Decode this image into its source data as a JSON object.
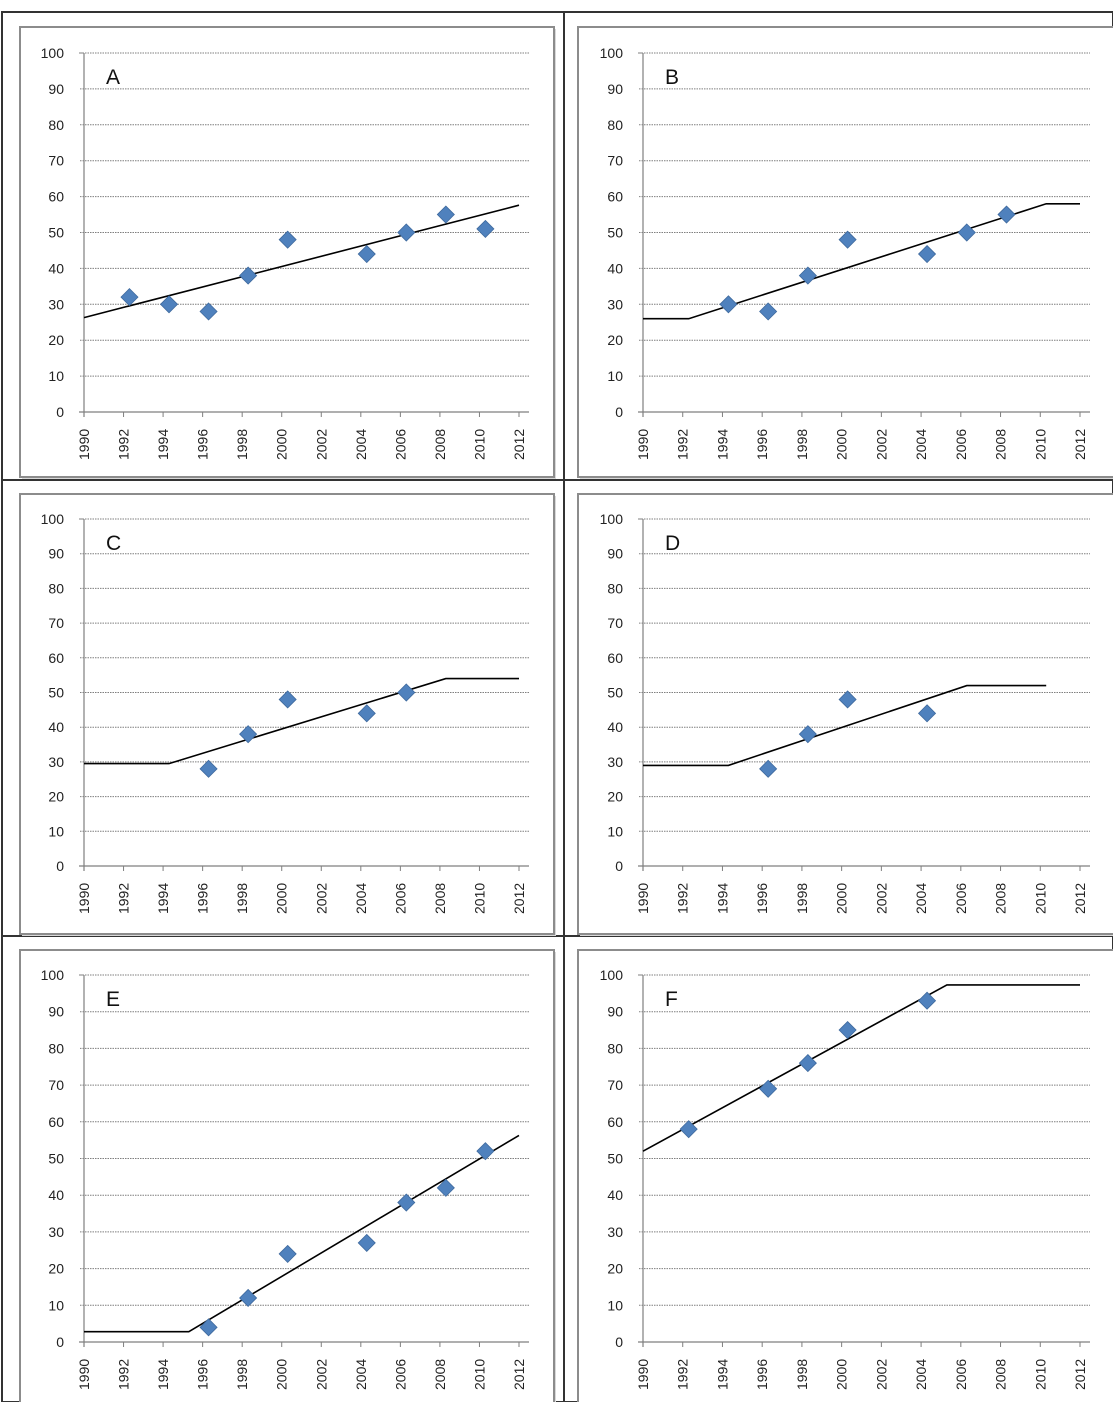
{
  "figure": {
    "xticks": [
      "1990",
      "1992",
      "1994",
      "1996",
      "1998",
      "2000",
      "2002",
      "2004",
      "2006",
      "2008",
      "2010",
      "2012"
    ],
    "yticks": [
      "0",
      "10",
      "20",
      "30",
      "40",
      "50",
      "60",
      "70",
      "80",
      "90",
      "100"
    ],
    "marker_color": "#4F81BD",
    "line_color": "#000000"
  },
  "chart_data": [
    {
      "type": "scatter",
      "panel": "A",
      "xlim": [
        1990,
        2012
      ],
      "ylim": [
        0,
        100
      ],
      "grid": true,
      "points": [
        [
          1992.3,
          32
        ],
        [
          1994.3,
          30
        ],
        [
          1996.3,
          28
        ],
        [
          1998.3,
          38
        ],
        [
          2000.3,
          48
        ],
        [
          2004.3,
          44
        ],
        [
          2006.3,
          50
        ],
        [
          2008.3,
          55
        ],
        [
          2010.3,
          51
        ]
      ],
      "fit_line": [
        [
          1990,
          26.3
        ],
        [
          2012,
          57.6
        ]
      ]
    },
    {
      "type": "scatter",
      "panel": "B",
      "xlim": [
        1990,
        2012
      ],
      "ylim": [
        0,
        100
      ],
      "grid": true,
      "points": [
        [
          1994.3,
          30
        ],
        [
          1996.3,
          28
        ],
        [
          1998.3,
          38
        ],
        [
          2000.3,
          48
        ],
        [
          2004.3,
          44
        ],
        [
          2006.3,
          50
        ],
        [
          2008.3,
          55
        ]
      ],
      "fit_line": [
        [
          1990,
          26
        ],
        [
          1992.3,
          26
        ],
        [
          2010.3,
          58
        ],
        [
          2012,
          58
        ]
      ]
    },
    {
      "type": "scatter",
      "panel": "C",
      "xlim": [
        1990,
        2012
      ],
      "ylim": [
        0,
        100
      ],
      "grid": true,
      "points": [
        [
          1996.3,
          28
        ],
        [
          1998.3,
          38
        ],
        [
          2000.3,
          48
        ],
        [
          2004.3,
          44
        ],
        [
          2006.3,
          50
        ]
      ],
      "fit_line": [
        [
          1990,
          29.5
        ],
        [
          1994.3,
          29.5
        ],
        [
          2008.3,
          54
        ],
        [
          2012,
          54
        ]
      ]
    },
    {
      "type": "scatter",
      "panel": "D",
      "xlim": [
        1990,
        2012
      ],
      "ylim": [
        0,
        100
      ],
      "grid": true,
      "points": [
        [
          1996.3,
          28
        ],
        [
          1998.3,
          38
        ],
        [
          2000.3,
          48
        ],
        [
          2004.3,
          44
        ]
      ],
      "fit_line": [
        [
          1990,
          29
        ],
        [
          1994.3,
          29
        ],
        [
          2006.3,
          52
        ],
        [
          2010.3,
          52
        ]
      ]
    },
    {
      "type": "scatter",
      "panel": "E",
      "xlim": [
        1990,
        2012
      ],
      "ylim": [
        0,
        100
      ],
      "grid": true,
      "points": [
        [
          1996.3,
          4
        ],
        [
          1998.3,
          12
        ],
        [
          2000.3,
          24
        ],
        [
          2004.3,
          27
        ],
        [
          2006.3,
          38
        ],
        [
          2008.3,
          42
        ],
        [
          2010.3,
          52
        ]
      ],
      "fit_line": [
        [
          1990,
          2.8
        ],
        [
          1995.3,
          2.8
        ],
        [
          2012,
          56.3
        ]
      ]
    },
    {
      "type": "scatter",
      "panel": "F",
      "xlim": [
        1990,
        2012
      ],
      "ylim": [
        0,
        100
      ],
      "grid": true,
      "points": [
        [
          1992.3,
          58
        ],
        [
          1996.3,
          69
        ],
        [
          1998.3,
          76
        ],
        [
          2000.3,
          85
        ],
        [
          2004.3,
          93
        ]
      ],
      "fit_line": [
        [
          1990,
          52
        ],
        [
          2005.3,
          97.3
        ],
        [
          2012,
          97.3
        ]
      ]
    }
  ]
}
